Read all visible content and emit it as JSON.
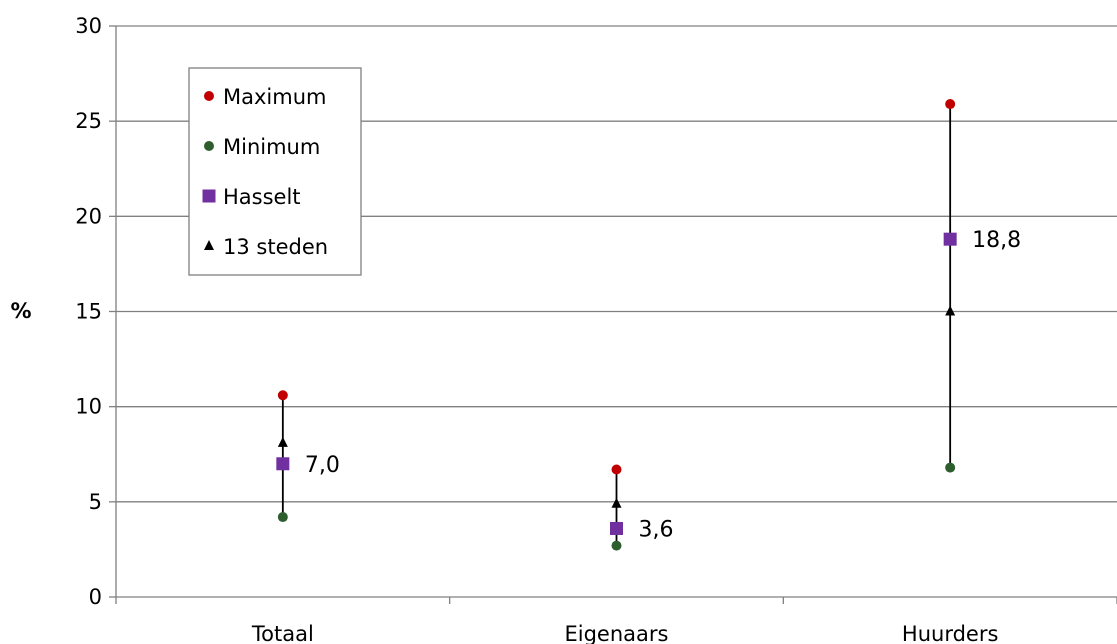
{
  "chart_data": {
    "type": "scatter",
    "ylabel": "%",
    "ylim": [
      0,
      30
    ],
    "yticks": [
      0,
      5,
      10,
      15,
      20,
      25,
      30
    ],
    "categories": [
      "Totaal",
      "Eigenaars",
      "Huurders"
    ],
    "grid": true,
    "legend_position": "top-left",
    "series": [
      {
        "name": "Maximum",
        "marker": "circle",
        "color": "#c00000",
        "values": [
          10.6,
          6.7,
          25.9
        ]
      },
      {
        "name": "Minimum",
        "marker": "circle",
        "color": "#2e5e2e",
        "values": [
          4.2,
          2.7,
          6.8
        ]
      },
      {
        "name": "Hasselt",
        "marker": "square",
        "color": "#7030a0",
        "values": [
          7.0,
          3.6,
          18.8
        ]
      },
      {
        "name": "13 steden",
        "marker": "triangle",
        "color": "#000000",
        "values": [
          8.1,
          4.9,
          15.0
        ]
      }
    ],
    "data_labels": [
      "7,0",
      "3,6",
      "18,8"
    ]
  }
}
